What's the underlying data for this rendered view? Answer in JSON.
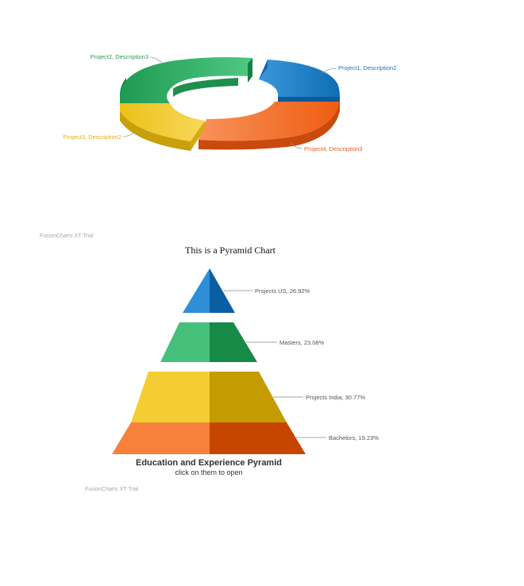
{
  "colors": {
    "blue": "#1e7fc9",
    "green": "#2fb366",
    "yellow": "#f0c419",
    "orange": "#f26a21",
    "watermark": "#a9a9a9"
  },
  "watermark_text": "FusionCharts XT Trial",
  "chart_data": [
    {
      "type": "doughnut3d",
      "title": "",
      "slices": [
        {
          "label": "Project1, Description2",
          "value": 16,
          "color": "#1e7fc9"
        },
        {
          "label": "Project4, Description3",
          "value": 34,
          "color": "#f26a21"
        },
        {
          "label": "Project3, Description2",
          "value": 18,
          "color": "#f0c419"
        },
        {
          "label": "Project2, Description3",
          "value": 32,
          "color": "#2fb366"
        }
      ]
    },
    {
      "type": "pyramid",
      "title": "This is a Pyramid Chart",
      "caption": "Education and Experience Pyramid",
      "subcaption": "click on them to open",
      "sections": [
        {
          "label": "Projects US, 26.92%",
          "value": 26.92,
          "color": "#2e8fd6"
        },
        {
          "label": "Masters, 23.08%",
          "value": 23.08,
          "color": "#45c07a"
        },
        {
          "label": "Projects India, 30.77%",
          "value": 30.77,
          "color": "#f4cd33"
        },
        {
          "label": "Bachelors, 19.23%",
          "value": 19.23,
          "color": "#f7813a"
        }
      ]
    }
  ]
}
